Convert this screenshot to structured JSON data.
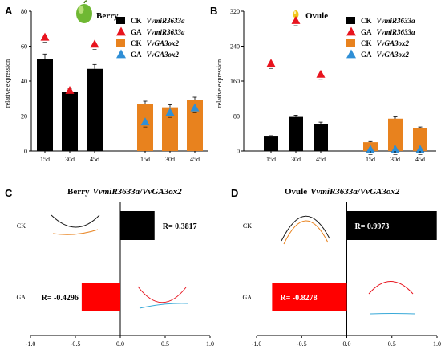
{
  "chart_data": [
    {
      "id": "A",
      "type": "bar",
      "panel_label": "A",
      "title": "Berry",
      "ylabel": "relative expression",
      "ylim": [
        0,
        80
      ],
      "yticks": [
        0,
        20,
        40,
        60,
        80
      ],
      "series": [
        {
          "name_prefix": "CK",
          "name_gene": "VvmiR3633a",
          "kind": "bar",
          "color": "#000000",
          "groups": [
            {
              "categories": [
                "15d",
                "30d",
                "45d"
              ],
              "values": [
                52.5,
                34,
                47
              ],
              "errors": [
                3,
                1.5,
                2.5
              ]
            }
          ]
        },
        {
          "name_prefix": "GA",
          "name_gene": "VvmiR3633a",
          "kind": "triangle",
          "color": "#e8141e",
          "groups": [
            {
              "categories": [
                "15d",
                "30d",
                "45d"
              ],
              "values": [
                65,
                34.5,
                61
              ],
              "errors": [
                0.8,
                0.8,
                0.8
              ]
            }
          ]
        },
        {
          "name_prefix": "CK",
          "name_gene": "VvGA3ox2",
          "kind": "bar",
          "color": "#e8821e",
          "groups": [
            {
              "categories": [
                "15d",
                "30d",
                "45d"
              ],
              "values": [
                27,
                25,
                29
              ],
              "errors": [
                1.5,
                1.5,
                1.8
              ]
            }
          ]
        },
        {
          "name_prefix": "GA",
          "name_gene": "VvGA3ox2",
          "kind": "triangle",
          "color": "#2f8fd6",
          "groups": [
            {
              "categories": [
                "15d",
                "30d",
                "45d"
              ],
              "values": [
                16.5,
                22,
                24.5
              ],
              "errors": [
                0.8,
                0.8,
                0.8
              ]
            }
          ]
        }
      ],
      "xtick_labels": [
        "15d",
        "30d",
        "45d",
        "15d",
        "30d",
        "45d"
      ]
    },
    {
      "id": "B",
      "type": "bar",
      "panel_label": "B",
      "title": "Ovule",
      "ylabel": "relative expression",
      "ylim": [
        0,
        320
      ],
      "yticks": [
        0,
        80,
        160,
        240,
        320
      ],
      "series": [
        {
          "name_prefix": "CK",
          "name_gene": "VvmiR3633a",
          "kind": "bar",
          "color": "#000000",
          "groups": [
            {
              "categories": [
                "15d",
                "30d",
                "45d"
              ],
              "values": [
                33,
                78,
                62
              ],
              "errors": [
                2,
                4,
                4
              ]
            }
          ]
        },
        {
          "name_prefix": "GA",
          "name_gene": "VvmiR3633a",
          "kind": "triangle",
          "color": "#e8141e",
          "groups": [
            {
              "categories": [
                "15d",
                "30d",
                "45d"
              ],
              "values": [
                200,
                298,
                175
              ],
              "errors": [
                4,
                4,
                4
              ]
            }
          ]
        },
        {
          "name_prefix": "CK",
          "name_gene": "VvGA3ox2",
          "kind": "bar",
          "color": "#e8821e",
          "groups": [
            {
              "categories": [
                "15d",
                "30d",
                "45d"
              ],
              "values": [
                20,
                74,
                52
              ],
              "errors": [
                1.5,
                4,
                3
              ]
            }
          ]
        },
        {
          "name_prefix": "GA",
          "name_gene": "VvGA3ox2",
          "kind": "triangle",
          "color": "#2f8fd6",
          "groups": [
            {
              "categories": [
                "15d",
                "30d",
                "45d"
              ],
              "values": [
                3,
                3,
                3
              ],
              "errors": [
                0.5,
                0.5,
                0.5
              ]
            }
          ]
        }
      ],
      "xtick_labels": [
        "15d",
        "30d",
        "45d",
        "15d",
        "30d",
        "45d"
      ]
    },
    {
      "id": "C",
      "type": "bar",
      "orientation": "horizontal",
      "panel_label": "C",
      "title_prefix": "Berry",
      "title_genes": "VvmiR3633a/VvGA3ox2",
      "categories": [
        "CK",
        "GA"
      ],
      "values": [
        0.3817,
        -0.4296
      ],
      "labels": [
        "R= 0.3817",
        "R= -0.4296"
      ],
      "colors": [
        "#000000",
        "#ff0000"
      ],
      "xlim": [
        -1.0,
        1.0
      ],
      "xticks": [
        -1.0,
        -0.5,
        0.0,
        0.5,
        1.0
      ],
      "xtick_labels": [
        "-1.0",
        "-0.5",
        "0.0",
        "0.5",
        "1.0"
      ],
      "trend_curves": {
        "CK": {
          "line1": {
            "color": "#1a1a1a",
            "shape": "valley"
          },
          "line2": {
            "color": "#e8821e",
            "shape": "flat-rise"
          }
        },
        "GA": {
          "line1": {
            "color": "#e8141e",
            "shape": "valley"
          },
          "line2": {
            "color": "#39a9d8",
            "shape": "flat-rise"
          }
        }
      }
    },
    {
      "id": "D",
      "type": "bar",
      "orientation": "horizontal",
      "panel_label": "D",
      "title_prefix": "Ovule",
      "title_genes": "VvmiR3633a/VvGA3ox2",
      "categories": [
        "CK",
        "GA"
      ],
      "values": [
        0.9973,
        -0.8278
      ],
      "labels": [
        "R= 0.9973",
        "R= -0.8278"
      ],
      "colors": [
        "#000000",
        "#ff0000"
      ],
      "xlim": [
        -1.0,
        1.0
      ],
      "xticks": [
        -1.0,
        -0.5,
        0.0,
        0.5,
        1.0
      ],
      "xtick_labels": [
        "-1.0",
        "-0.5",
        "0.0",
        "0.5",
        "1.0"
      ],
      "trend_curves": {
        "CK": {
          "line1": {
            "color": "#1a1a1a",
            "shape": "peak"
          },
          "line2": {
            "color": "#e8821e",
            "shape": "peak"
          }
        },
        "GA": {
          "line1": {
            "color": "#e8141e",
            "shape": "peak"
          },
          "line2": {
            "color": "#39a9d8",
            "shape": "flat"
          }
        }
      }
    }
  ],
  "icons": {
    "berry": {
      "name": "green-berry-icon",
      "color": "#6fb833"
    },
    "ovule": {
      "name": "yellow-ovule-icon",
      "color": "#f0c418"
    }
  }
}
